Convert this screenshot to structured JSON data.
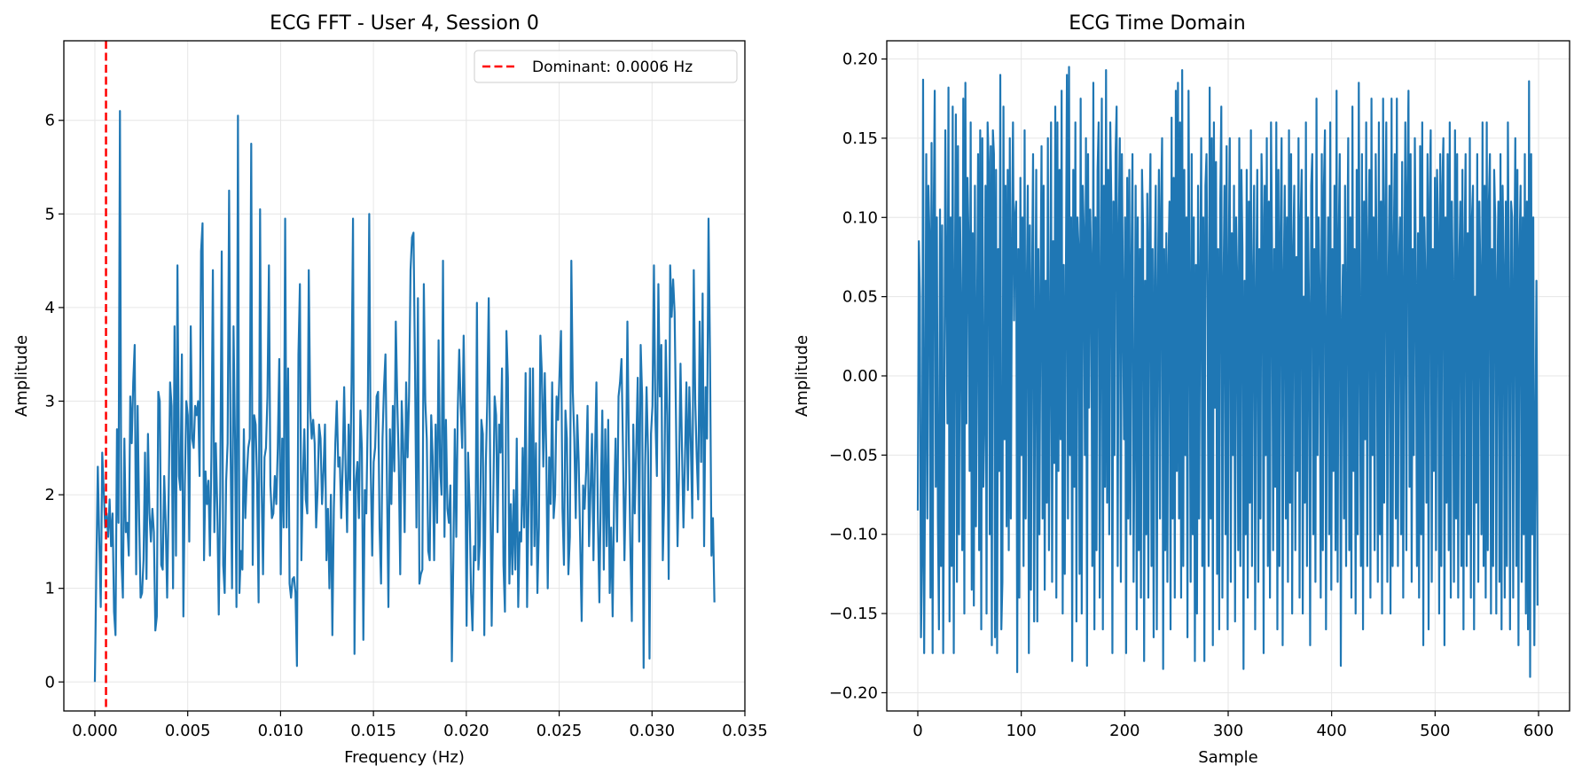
{
  "chart_data": [
    {
      "type": "line",
      "title": "ECG FFT - User 4, Session 0",
      "xlabel": "Frequency (Hz)",
      "ylabel": "Amplitude",
      "xlim": [
        -0.00167,
        0.035
      ],
      "ylim": [
        -0.31,
        6.85
      ],
      "xticks": [
        "0.000",
        "0.005",
        "0.010",
        "0.015",
        "0.020",
        "0.025",
        "0.030",
        "0.035"
      ],
      "yticks": [
        "0",
        "1",
        "2",
        "3",
        "4",
        "5",
        "6"
      ],
      "grid": true,
      "legend": {
        "placement": "top-right",
        "entries": [
          "Dominant: 0.0006 Hz"
        ]
      },
      "dominant_frequency": 0.0006,
      "colors": {
        "series": "#1f77b4",
        "marker": "#ff0000"
      },
      "x_start": 0.0,
      "x_step": 5.56e-05,
      "series": [
        {
          "values": [
            0.0,
            1.2,
            2.3,
            1.5,
            0.8,
            2.45,
            2.05,
            1.65,
            1.8,
            1.55,
            1.95,
            1.45,
            1.8,
            0.75,
            0.5,
            2.7,
            1.7,
            6.1,
            1.3,
            0.9,
            2.6,
            1.6,
            1.7,
            1.35,
            3.05,
            2.55,
            3.2,
            3.6,
            1.15,
            2.95,
            1.75,
            0.9,
            0.95,
            1.3,
            2.45,
            1.1,
            2.65,
            1.8,
            1.5,
            1.85,
            1.6,
            0.55,
            0.7,
            3.1,
            3.0,
            1.25,
            1.2,
            2.2,
            1.7,
            0.9,
            1.95,
            3.2,
            2.95,
            1.0,
            3.8,
            1.35,
            4.45,
            2.2,
            2.05,
            3.5,
            0.7,
            2.1,
            3.0,
            2.85,
            1.5,
            3.8,
            2.6,
            2.5,
            2.95,
            2.85,
            3.0,
            2.2,
            4.6,
            4.9,
            1.3,
            2.25,
            1.9,
            2.15,
            1.35,
            2.4,
            4.4,
            1.6,
            2.55,
            1.85,
            0.72,
            2.05,
            4.6,
            1.25,
            0.95,
            2.15,
            2.55,
            5.25,
            2.5,
            1.0,
            3.8,
            2.6,
            0.8,
            6.05,
            0.95,
            1.4,
            1.2,
            2.7,
            1.75,
            2.2,
            2.5,
            2.6,
            5.75,
            1.25,
            2.85,
            2.75,
            2.1,
            0.85,
            5.05,
            2.15,
            1.15,
            2.4,
            2.5,
            3.05,
            4.45,
            2.1,
            1.75,
            1.8,
            2.2,
            1.9,
            2.5,
            3.45,
            1.15,
            2.6,
            1.65,
            4.95,
            1.65,
            3.35,
            1.05,
            0.9,
            1.1,
            1.12,
            0.95,
            0.17,
            3.5,
            4.25,
            1.3,
            2.15,
            2.7,
            1.95,
            1.8,
            4.4,
            2.9,
            2.6,
            2.8,
            2.55,
            1.65,
            2.05,
            2.75,
            2.6,
            1.9,
            2.25,
            2.75,
            1.3,
            1.85,
            1.0,
            2.0,
            0.5,
            1.85,
            2.55,
            3.0,
            2.3,
            2.4,
            1.75,
            2.3,
            3.15,
            2.25,
            1.6,
            2.75,
            2.05,
            3.2,
            4.95,
            0.3,
            2.15,
            2.35,
            1.75,
            2.9,
            2.5,
            0.45,
            2.05,
            1.8,
            2.85,
            5.0,
            2.3,
            1.35,
            2.35,
            2.5,
            3.05,
            3.1,
            1.65,
            1.05,
            2.6,
            3.15,
            3.5,
            2.15,
            0.8,
            2.7,
            1.9,
            2.95,
            2.25,
            3.85,
            3.0,
            2.35,
            1.15,
            3.0,
            2.55,
            1.6,
            3.2,
            2.4,
            3.05,
            4.4,
            4.75,
            4.8,
            3.4,
            1.65,
            4.1,
            1.05,
            1.15,
            1.2,
            4.25,
            3.0,
            2.6,
            1.4,
            1.3,
            2.85,
            2.4,
            1.3,
            2.75,
            1.7,
            3.65,
            2.3,
            2.0,
            4.5,
            1.55,
            2.8,
            1.85,
            1.7,
            2.1,
            0.22,
            1.3,
            2.7,
            1.55,
            2.9,
            3.55,
            2.95,
            2.5,
            3.7,
            2.6,
            0.6,
            2.45,
            1.9,
            0.95,
            0.55,
            1.45,
            1.3,
            4.05,
            1.2,
            1.5,
            2.8,
            2.65,
            0.5,
            2.3,
            3.0,
            4.1,
            2.3,
            0.6,
            1.85,
            3.05,
            2.85,
            1.6,
            2.75,
            2.45,
            3.35,
            1.25,
            0.75,
            3.75,
            3.25,
            1.05,
            1.9,
            1.15,
            2.05,
            1.2,
            2.6,
            0.8,
            1.6,
            1.5,
            2.5,
            1.65,
            3.3,
            0.8,
            1.95,
            3.35,
            1.25,
            3.35,
            1.45,
            2.55,
            0.95,
            1.65,
            3.7,
            3.3,
            2.3,
            3.3,
            2.45,
            1.0,
            2.4,
            1.9,
            3.2,
            1.75,
            2.0,
            3.05,
            2.8,
            3.3,
            3.75,
            1.85,
            1.25,
            2.9,
            2.6,
            1.15,
            1.55,
            4.5,
            3.1,
            2.6,
            1.75,
            2.85,
            2.35,
            1.5,
            0.65,
            2.1,
            1.85,
            2.25,
            2.95,
            1.45,
            2.05,
            2.65,
            1.3,
            2.4,
            3.2,
            1.75,
            0.85,
            2.05,
            2.9,
            1.2,
            2.7,
            1.45,
            2.8,
            0.95,
            1.65,
            0.7,
            1.95,
            2.6,
            1.5,
            3.05,
            3.2,
            3.45,
            2.5,
            1.3,
            2.15,
            3.85,
            2.55,
            1.45,
            0.65,
            2.75,
            1.8,
            2.5,
            3.25,
            1.5,
            3.6,
            3.05,
            0.15,
            2.3,
            3.15,
            2.45,
            0.25,
            2.65,
            2.95,
            4.45,
            2.8,
            2.2,
            4.25,
            3.05,
            3.6,
            1.3,
            2.0,
            3.65,
            2.85,
            1.1,
            4.45,
            3.9,
            4.3,
            3.95,
            2.75,
            1.45,
            2.25,
            3.4,
            2.5,
            1.65,
            2.35,
            3.2,
            2.05,
            3.15,
            2.55,
            1.75,
            4.4,
            3.0,
            2.4,
            1.95,
            3.85,
            2.35,
            4.15,
            1.45,
            3.15,
            2.6,
            4.95,
            3.5,
            1.35,
            1.75,
            0.85
          ],
          "count": 600
        }
      ]
    },
    {
      "type": "line",
      "title": "ECG Time Domain",
      "xlabel": "Sample",
      "ylabel": "Amplitude",
      "xlim": [
        -30,
        630
      ],
      "ylim": [
        -0.2115,
        0.2115
      ],
      "xticks": [
        "0",
        "100",
        "200",
        "300",
        "400",
        "500",
        "600"
      ],
      "yticks": [
        "0.20",
        "0.15",
        "0.10",
        "0.05",
        "0.00",
        "−0.05",
        "−0.10",
        "−0.15",
        "−0.20"
      ],
      "grid": true,
      "colors": {
        "series": "#1f77b4"
      },
      "series": [
        {
          "values": [
            -0.085,
            0.085,
            0.05,
            -0.165,
            -0.12,
            0.187,
            -0.175,
            -0.04,
            0.14,
            -0.09,
            0.12,
            0.09,
            -0.14,
            0.147,
            -0.175,
            0.1,
            0.18,
            -0.07,
            0.1,
            -0.09,
            -0.16,
            0.105,
            -0.12,
            0.095,
            -0.175,
            -0.04,
            0.155,
            0.06,
            -0.03,
            0.182,
            -0.155,
            0.1,
            -0.12,
            0.17,
            -0.175,
            0.05,
            0.165,
            -0.13,
            0.145,
            -0.1,
            0.1,
            0.035,
            -0.11,
            0.175,
            -0.15,
            0.185,
            -0.03,
            0.125,
            0.085,
            -0.06,
            0.16,
            -0.135,
            0.09,
            -0.145,
            0.12,
            -0.095,
            0.03,
            0.14,
            -0.11,
            0.155,
            -0.16,
            0.15,
            -0.07,
            -0.025,
            0.12,
            -0.15,
            0.16,
            0.135,
            -0.1,
            0.145,
            -0.17,
            0.155,
            0.14,
            -0.165,
            0.13,
            -0.175,
            0.08,
            -0.06,
            0.19,
            -0.16,
            -0.13,
            0.17,
            -0.04,
            0.12,
            -0.095,
            0.13,
            -0.11,
            0.15,
            -0.09,
            0.08,
            0.16,
            0.035,
            0.1,
            0.11,
            -0.187,
            0.08,
            -0.14,
            0.125,
            -0.05,
            0.1,
            -0.12,
            0.155,
            -0.09,
            0.05,
            0.12,
            -0.175,
            0.095,
            -0.135,
            0.06,
            0.14,
            -0.155,
            0.02,
            0.13,
            -0.155,
            0.08,
            -0.1,
            0.05,
            0.145,
            -0.09,
            0.12,
            -0.135,
            0.06,
            -0.08,
            0.15,
            -0.11,
            0.01,
            0.16,
            -0.13,
            0.085,
            -0.055,
            0.17,
            -0.14,
            0.16,
            -0.06,
            0.13,
            -0.04,
            0.18,
            -0.15,
            0.07,
            -0.125,
            0.06,
            0.19,
            -0.09,
            0.195,
            -0.05,
            0.1,
            -0.18,
            0.13,
            -0.07,
            0.16,
            -0.155,
            0.1,
            0.08,
            -0.125,
            0.175,
            -0.15,
            0.12,
            0.09,
            -0.05,
            0.15,
            -0.183,
            0.14,
            -0.02,
            0.105,
            0.07,
            -0.12,
            0.185,
            -0.16,
            0.1,
            -0.11,
            0.13,
            0.16,
            -0.14,
            0.05,
            0.175,
            -0.16,
            0.12,
            -0.07,
            0.193,
            -0.08,
            0.13,
            -0.1,
            0.16,
            0.11,
            -0.175,
            0.11,
            -0.05,
            0.14,
            0.17,
            -0.12,
            0.09,
            0.15,
            -0.13,
            0.14,
            0.05,
            -0.04,
            0.1,
            -0.175,
            0.125,
            -0.09,
            0.13,
            -0.1,
            0.07,
            0.14,
            -0.13,
            -0.03,
            0.12,
            -0.16,
            0.1,
            -0.11,
            0.08,
            -0.14,
            0.13,
            0.095,
            -0.18,
            0.06,
            -0.1,
            0.115,
            -0.14,
            0.09,
            0.14,
            -0.12,
            0.08,
            -0.165,
            0.06,
            0.12,
            -0.16,
            0.05,
            0.13,
            -0.09,
            0.105,
            0.15,
            -0.185,
            0.08,
            -0.11,
            0.09,
            -0.13,
            0.07,
            0.11,
            -0.16,
            0.163,
            -0.09,
            0.125,
            -0.14,
            0.18,
            -0.06,
            0.185,
            -0.09,
            0.16,
            -0.14,
            0.193,
            -0.12,
            0.13,
            -0.05,
            0.1,
            -0.165,
            0.18,
            0.05,
            -0.13,
            0.14,
            -0.1,
            0.1,
            -0.18,
            0.07,
            -0.15,
            0.12,
            -0.09,
            0.06,
            0.15,
            -0.12,
            0.1,
            -0.18,
            0.12,
            0.14,
            0.03,
            -0.12,
            0.182,
            -0.09,
            0.15,
            -0.17,
            0.16,
            -0.02,
            0.135,
            -0.125,
            0.08,
            -0.16,
            0.11,
            0.17,
            -0.14,
            0.05,
            0.12,
            -0.1,
            0.145,
            -0.16,
            0.07,
            0.15,
            -0.13,
            0.09,
            -0.05,
            0.12,
            -0.155,
            0.1,
            0.06,
            -0.11,
            0.15,
            -0.12,
            0.13,
            0.08,
            -0.185,
            0.06,
            -0.1,
            0.13,
            -0.14,
            0.11,
            -0.08,
            0.155,
            -0.12,
            0.06,
            0.12,
            -0.16,
            0.05,
            0.13,
            -0.13,
            0.08,
            -0.09,
            0.14,
            0.1,
            -0.175,
            0.12,
            -0.05,
            0.15,
            -0.12,
            0.11,
            -0.14,
            0.16,
            0.08,
            -0.11,
            0.08,
            -0.07,
            0.16,
            -0.16,
            0.13,
            -0.12,
            0.09,
            0.15,
            -0.17,
            0.06,
            0.12,
            -0.09,
            0.1,
            -0.13,
            0.155,
            -0.08,
            0.14,
            -0.15,
            0.08,
            0.12,
            -0.11,
            0.075,
            -0.06,
            0.15,
            -0.14,
            0.1,
            0.13,
            -0.15,
            0.05,
            -0.08,
            0.16,
            -0.12,
            0.1,
            0.04,
            -0.17,
            0.12,
            0.14,
            -0.1,
            0.08,
            -0.13,
            0.175,
            -0.05,
            0.1,
            0.05,
            -0.14,
            0.14,
            -0.11,
            0.12,
            0.155,
            -0.16,
            0.02,
            0.1,
            -0.1,
            0.16,
            -0.135,
            0.08,
            -0.06,
            0.12,
            -0.11,
            0.18,
            -0.13,
            0.085,
            0.14,
            -0.183,
            0.03,
            0.07,
            -0.09,
            0.12,
            -0.12,
            0.06,
            0.15,
            -0.11,
            0.1,
            -0.14,
            0.17,
            -0.06,
            0.08,
            -0.15,
            0.13,
            -0.1,
            0.185,
            0.02,
            -0.12,
            0.14,
            -0.16,
            0.11,
            -0.04,
            0.16,
            -0.12,
            0.08,
            0.13,
            -0.14,
            0.175,
            -0.05,
            0.1,
            -0.11,
            0.14,
            0.06,
            -0.13,
            0.16,
            -0.1,
            0.11,
            -0.15,
            0.175,
            -0.08,
            0.1,
            0.16,
            -0.13,
            0.05,
            0.12,
            -0.15,
            0.175,
            -0.12,
            0.08,
            0.14,
            -0.09,
            0.175,
            -0.12,
            0.07,
            0.1,
            -0.1,
            0.135,
            -0.14,
            0.05,
            0.16,
            -0.11,
            0.12,
            0.18,
            -0.07,
            0.14,
            -0.13,
            0.08,
            -0.05,
            0.15,
            0.06,
            -0.12,
            0.09,
            -0.14,
            0.145,
            -0.1,
            0.16,
            -0.17,
            0.1,
            0.06,
            -0.08,
            0.14,
            -0.16,
            0.11,
            0.155,
            -0.13,
            0.08,
            -0.06,
            0.125,
            -0.11,
            0.13,
            0.09,
            -0.15,
            0.14,
            -0.12,
            0.12,
            0.15,
            -0.17,
            0.1,
            -0.08,
            0.14,
            -0.11,
            0.16,
            -0.14,
            0.11,
            0.05,
            -0.13,
            0.155,
            -0.09,
            0.14,
            -0.14,
            0.07,
            0.11,
            -0.12,
            0.13,
            -0.16,
            0.08,
            0.14,
            -0.12,
            0.09,
            -0.1,
            0.15,
            -0.14,
            0.1,
            0.12,
            -0.16,
            0.05,
            -0.08,
            0.14,
            -0.13,
            0.11,
            0.06,
            -0.1,
            0.16,
            -0.12,
            0.12,
            -0.14,
            0.16,
            -0.11,
            0.11,
            0.14,
            -0.15,
            0.08,
            -0.12,
            0.13,
            0.1,
            -0.15,
            0.06,
            0.11,
            -0.13,
            0.14,
            -0.16,
            0.12,
            0.07,
            -0.14,
            0.11,
            -0.12,
            0.16,
            0.05,
            -0.16,
            0.11,
            0.1,
            -0.14,
            0.06,
            0.15,
            -0.12,
            0.13,
            -0.17,
            0.08,
            0.12,
            -0.13,
            0.1,
            -0.1,
            0.14,
            -0.15,
            0.11,
            -0.16,
            0.186,
            -0.19,
            0.14,
            -0.1,
            0.1,
            -0.17,
            -0.045,
            0.06,
            -0.145
          ]
        }
      ]
    }
  ]
}
